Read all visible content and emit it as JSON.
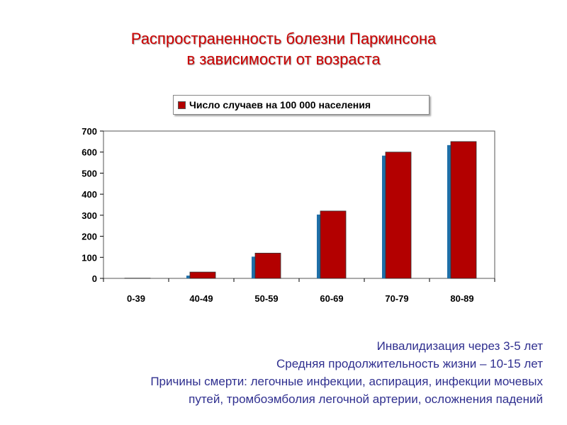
{
  "title_line1": "Распространенность болезни Паркинсона",
  "title_line2": "в зависимости от возраста",
  "notes": {
    "line1": "Инвалидизация через 3-5 лет",
    "line2": "Средняя продолжительность жизни – 10-15 лет",
    "line3": "Причины смерти: легочные инфекции, аспирация, инфекции мочевых",
    "line4": "путей, тромбоэмболия легочной артерии, осложнения падений"
  },
  "colors": {
    "bar_front": "#b30000",
    "bar_side": "#1f6fa8",
    "title": "#cc0000",
    "notes": "#2f2f8f"
  },
  "chart_data": {
    "type": "bar",
    "title": "",
    "xlabel": "",
    "ylabel": "",
    "categories": [
      "0-39",
      "40-49",
      "50-59",
      "60-69",
      "70-79",
      "80-89"
    ],
    "series": [
      {
        "name": "Число случаев на 100 000 населения",
        "values": [
          1,
          30,
          120,
          320,
          600,
          650
        ]
      }
    ],
    "ylim": [
      0,
      700
    ],
    "yticks": [
      0,
      100,
      200,
      300,
      400,
      500,
      600,
      700
    ],
    "grid": false,
    "legend_position": "top",
    "three_d": true
  }
}
